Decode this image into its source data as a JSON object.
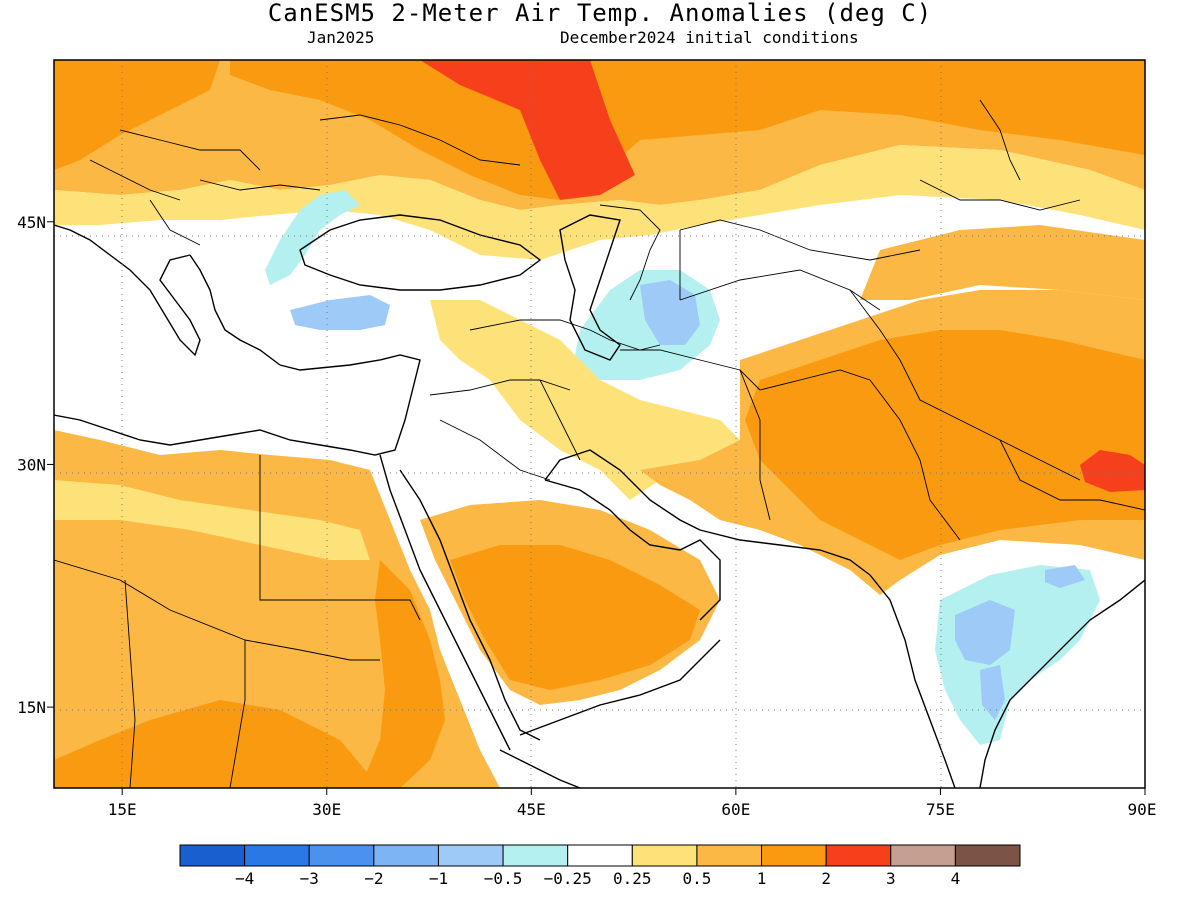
{
  "title": "CanESM5 2-Meter Air Temp. Anomalies (deg C)",
  "subtitle_left": "Jan2025",
  "subtitle_right": "December2024 initial conditions",
  "map": {
    "lon_range": [
      10,
      90
    ],
    "lat_range": [
      10,
      55
    ],
    "lon_ticks": [
      {
        "value": 15,
        "label": "15E"
      },
      {
        "value": 30,
        "label": "30E"
      },
      {
        "value": 45,
        "label": "45E"
      },
      {
        "value": 60,
        "label": "60E"
      },
      {
        "value": 75,
        "label": "75E"
      },
      {
        "value": 90,
        "label": "90E"
      }
    ],
    "lat_ticks": [
      {
        "value": 15,
        "label": "15N"
      },
      {
        "value": 30,
        "label": "30N"
      },
      {
        "value": 45,
        "label": "45N"
      }
    ],
    "gridlines": "dotted"
  },
  "colorbar": {
    "colors": [
      "#1a5fcf",
      "#2a77e6",
      "#4a92ee",
      "#7db4f4",
      "#9dcaf7",
      "#b4f0f0",
      "#ffffff",
      "#fde27a",
      "#fbb844",
      "#f99a10",
      "#f5401b",
      "#c59f91",
      "#7b5445"
    ],
    "labels": [
      "-4",
      "-3",
      "-2",
      "-1",
      "-0.5",
      "-0.25",
      "0.25",
      "0.5",
      "1",
      "2",
      "3",
      "4"
    ]
  },
  "palette": {
    "white": "#ffffff",
    "light_blue": "#b4f0f0",
    "blue": "#9dcaf7",
    "mid_blue": "#7db4f4",
    "yellow": "#fde27a",
    "light_orange": "#fbb844",
    "orange": "#f99a10",
    "red": "#f5401b",
    "coastline": "#000000"
  }
}
